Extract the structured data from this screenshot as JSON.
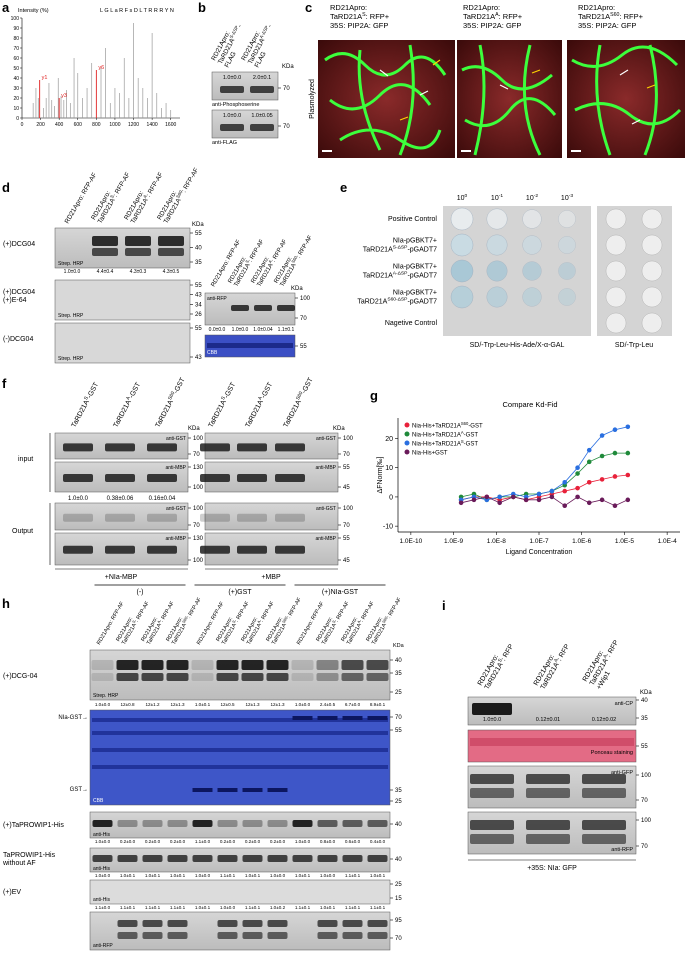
{
  "panel_a": {
    "letter": "a",
    "y_label": "Intensity (%)",
    "sequence": "L G L a R F s D L T R R R Y N",
    "xlim": [
      0,
      1700
    ],
    "ylim": [
      0,
      100
    ],
    "xticks": [
      0,
      200,
      400,
      600,
      800,
      1000,
      1200,
      1400,
      1600
    ],
    "yticks": [
      0,
      10,
      20,
      30,
      40,
      50,
      60,
      70,
      80,
      90,
      100
    ],
    "peaks": {
      "x": [
        120,
        150,
        175,
        230,
        260,
        290,
        320,
        350,
        390,
        420,
        450,
        480,
        520,
        560,
        600,
        650,
        700,
        750,
        850,
        900,
        950,
        1000,
        1050,
        1100,
        1150,
        1200,
        1250,
        1300,
        1350,
        1400,
        1450,
        1500,
        1550,
        1600
      ],
      "values": [
        15,
        30,
        20,
        10,
        20,
        35,
        18,
        12,
        40,
        22,
        18,
        28,
        15,
        60,
        45,
        20,
        30,
        55,
        50,
        70,
        15,
        30,
        25,
        60,
        20,
        95,
        40,
        30,
        20,
        85,
        25,
        10,
        15,
        8
      ]
    },
    "ions": [
      {
        "label": "y1",
        "x": 190,
        "value": 38
      },
      {
        "label": "y3",
        "x": 400,
        "value": 20
      },
      {
        "label": "y6",
        "x": 800,
        "value": 48
      }
    ]
  },
  "panel_b": {
    "letter": "b",
    "kda": "KDa",
    "columns": [
      [
        "RD21Apro:",
        {
          "pre": "TaRD21A",
          "sup": "S-ΔSP",
          "post": "-"
        },
        "FLAG"
      ],
      [
        "RD21Apro:",
        {
          "pre": "TaRD21A",
          "sup": "A-ΔSP",
          "post": "-"
        },
        "FLAG"
      ]
    ],
    "blots": [
      {
        "values": [
          "1.0±0.0",
          "2.0±0.1"
        ],
        "antibody": "anti-Phosphoserine",
        "marker": 70
      },
      {
        "values": [
          "1.0±0.0",
          "1.0±0.05"
        ],
        "antibody": "anti-FLAG",
        "marker": 70
      }
    ]
  },
  "panel_c": {
    "letter": "c",
    "side_label": "Plasmolyzed",
    "images": [
      [
        "RD21Apro:",
        {
          "pre": "TaRD21A",
          "sup": "S",
          "post": ": RFP+"
        },
        "35S: PIP2A: GFP"
      ],
      [
        "RD21Apro:",
        {
          "pre": "TaRD21A",
          "sup": "A",
          "post": ": RFP+"
        },
        "35S: PIP2A: GFP"
      ],
      [
        "RD21Apro:",
        {
          "pre": "TaRD21A",
          "sup": "S60",
          "post": ": RFP+"
        },
        "35S: PIP2A: GFP"
      ]
    ]
  },
  "panel_d": {
    "letter": "d",
    "kda": "KDa",
    "lanes": [
      [
        "RD21Apro: RFP-AF"
      ],
      [
        "RD21Apro:",
        {
          "pre": "TaRD21A",
          "sup": "S",
          "post": ": RFP-AF"
        }
      ],
      [
        "RD21Apro:",
        {
          "pre": "TaRD21A",
          "sup": "A",
          "post": ": RFP-AF"
        }
      ],
      [
        "RD21Apro:",
        {
          "pre": "TaRD21A",
          "sup": "S60",
          "post": ": RFP-AF"
        }
      ]
    ],
    "rows": [
      {
        "label": [
          "(+)DCG04"
        ],
        "detection": "Strep. HRP",
        "markers": [
          55,
          40,
          35
        ],
        "values": [
          "1.0±0.0",
          "4.4±0.4",
          "4.3±0.3",
          "4.3±0.5"
        ]
      },
      {
        "label": [
          "(+)DCG04",
          "(+)E-64"
        ],
        "detection": "Strep. HRP",
        "markers": [
          55,
          43,
          34,
          26
        ]
      },
      {
        "label": [
          "(-)DCG04"
        ],
        "detection": "Strep. HRP",
        "markers": [
          55,
          43
        ]
      }
    ],
    "right": {
      "lanes": [
        [
          "RD21Apro: RFP-AF"
        ],
        [
          "RD21Apro:",
          {
            "pre": "TaRD21A",
            "sup": "S",
            "post": ": RFP-AF"
          }
        ],
        [
          "RD21Apro:",
          {
            "pre": "TaRD21A",
            "sup": "A",
            "post": ": RFP-AF"
          }
        ],
        [
          "RD21Apro:",
          {
            "pre": "TaRD21A",
            "sup": "S60",
            "post": ": RFP-AF"
          }
        ]
      ],
      "kda": "KDa",
      "antibody": "anti-RFP",
      "stain": "CBB",
      "markers": [
        100,
        70
      ],
      "stain_markers": [
        55
      ],
      "values": [
        "0.0±0.0",
        "1.0±0.0",
        "1.0±0.04",
        "1.1±0.1"
      ]
    }
  },
  "panel_e": {
    "letter": "e",
    "dilutions": [
      {
        "pre": "10",
        "sup": "0"
      },
      {
        "pre": "10",
        "sup": "-1"
      },
      {
        "pre": "10",
        "sup": "-2"
      },
      {
        "pre": "10",
        "sup": "-3"
      }
    ],
    "rows": [
      [
        "Positive Control"
      ],
      [
        "NIa-pGBKT7+",
        {
          "pre": "TaRD21A",
          "sup": "S-ΔSP",
          "post": "-pGADT7"
        }
      ],
      [
        "NIa-pGBKT7+",
        {
          "pre": "TaRD21A",
          "sup": "A-ΔSP",
          "post": "-pGADT7"
        }
      ],
      [
        "NIa-pGBKT7+",
        {
          "pre": "TaRD21A",
          "sup": "S60-ΔSP",
          "post": "-pGADT7"
        }
      ],
      [
        "Nagetive Control"
      ]
    ],
    "media": [
      "SD/-Trp-Leu-His-Ade/X-α-GAL",
      "SD/-Trp-Leu"
    ]
  },
  "panel_f": {
    "letter": "f",
    "kda": "KDa",
    "input": "input",
    "output": "Output",
    "left": {
      "lanes": [
        {
          "pre": "TaRD21A",
          "sup": "S",
          "post": "-GST"
        },
        {
          "pre": "TaRD21A",
          "sup": "A",
          "post": "-GST"
        },
        {
          "pre": "TaRD21A",
          "sup": "S60",
          "post": "-GST"
        }
      ],
      "values": [
        "1.0±0.0",
        "0.38±0.06",
        "0.16±0.04"
      ],
      "condition": "+NIa-MBP",
      "antibodies": [
        "anti-GST",
        "anti-MBP",
        "anti-GST",
        "anti-MBP"
      ],
      "markers": [
        [
          100,
          70
        ],
        [
          130,
          100
        ],
        [
          100,
          70
        ],
        [
          130,
          100
        ]
      ]
    },
    "right": {
      "lanes": [
        {
          "pre": "TaRD21A",
          "sup": "S",
          "post": "-GST"
        },
        {
          "pre": "TaRD21A",
          "sup": "A",
          "post": "-GST"
        },
        {
          "pre": "TaRD21A",
          "sup": "S60",
          "post": "-GST"
        }
      ],
      "condition": "+MBP",
      "kda": "KDa",
      "antibodies": [
        "anti-GST",
        "anti-MBP",
        "anti-GST",
        "anti-MBP"
      ],
      "markers": [
        [
          100,
          70
        ],
        [
          55,
          45
        ],
        [
          100,
          70
        ],
        [
          55,
          45
        ]
      ]
    }
  },
  "panel_g": {
    "letter": "g",
    "chart_data": {
      "type": "scatter",
      "title": "Compare Kd-Fid",
      "x_label": "Ligand Concentration",
      "y_label": "ΔFNorm[‰]",
      "log_x": true,
      "x": [
        1.5e-09,
        3e-09,
        6e-09,
        1.2e-08,
        2.5e-08,
        5e-08,
        1e-07,
        2e-07,
        4e-07,
        8e-07,
        1.5e-06,
        3e-06,
        6e-06,
        1.2e-05
      ],
      "xlim": [
        5e-11,
        0.0002
      ],
      "ylim": [
        -12,
        27
      ],
      "xticks": [
        {
          "value": 1e-10,
          "label": "1.0E-10"
        },
        {
          "value": 1e-09,
          "label": "1.0E-9"
        },
        {
          "value": 1e-08,
          "label": "1.0E-8"
        },
        {
          "value": 1e-07,
          "label": "1.0E-7"
        },
        {
          "value": 1e-06,
          "label": "1.0E-6"
        },
        {
          "value": 1e-05,
          "label": "1.0E-5"
        },
        {
          "value": 0.0001,
          "label": "1.0E-4"
        }
      ],
      "yticks": [
        -10,
        0,
        10,
        20
      ],
      "series": [
        {
          "name": {
            "pre": "Nia-His+TaRD21A",
            "sup": "S60",
            "post": "-GST"
          },
          "color": "#e8213a",
          "values": [
            -1,
            0,
            0,
            -1,
            0,
            -1,
            0,
            1,
            2,
            3,
            5,
            6,
            7,
            7.5
          ]
        },
        {
          "name": {
            "pre": "Nia-His+TaRD21A",
            "sup": "A",
            "post": "-GST"
          },
          "color": "#1f8a3a",
          "values": [
            0,
            1,
            -1,
            0,
            0,
            1,
            1,
            2,
            4,
            8,
            12,
            14,
            15,
            15
          ]
        },
        {
          "name": {
            "pre": "Nia-His+TaRD21A",
            "sup": "S",
            "post": "-GST"
          },
          "color": "#2a6fe0",
          "values": [
            -1,
            0,
            -1,
            0,
            1,
            0,
            1,
            2,
            5,
            10,
            16,
            21,
            23,
            24
          ]
        },
        {
          "name": "Nia-His+GST",
          "color": "#6a1b5a",
          "values": [
            -2,
            -1,
            0,
            -2,
            0,
            -1,
            -1,
            0,
            -3,
            0,
            -2,
            -1,
            -3,
            -1
          ]
        }
      ]
    }
  },
  "panel_h": {
    "letter": "h",
    "kda": "KDa",
    "groups": [
      "(-)",
      "(+)GST",
      "(+)NIa-GST"
    ],
    "lanes": [
      [
        "RD21Apro: RFP-AF"
      ],
      [
        "RD21Apro:",
        {
          "pre": "TaRD21A",
          "sup": "S",
          "post": ": RFP-AF"
        }
      ],
      [
        "RD21Apro:",
        {
          "pre": "TaRD21A",
          "sup": "A",
          "post": ": RFP-AF"
        }
      ],
      [
        "RD21Apro:",
        {
          "pre": "TaRD21A",
          "sup": "S60",
          "post": ": RFP-AF"
        }
      ],
      [
        "RD21Apro: RFP-AF"
      ],
      [
        "RD21Apro:",
        {
          "pre": "TaRD21A",
          "sup": "S",
          "post": ": RFP-AF"
        }
      ],
      [
        "RD21Apro:",
        {
          "pre": "TaRD21A",
          "sup": "A",
          "post": ": RFP-AF"
        }
      ],
      [
        "RD21Apro:",
        {
          "pre": "TaRD21A",
          "sup": "S60",
          "post": ": RFP-AF"
        }
      ],
      [
        "RD21Apro: RFP-AF"
      ],
      [
        "RD21Apro:",
        {
          "pre": "TaRD21A",
          "sup": "S",
          "post": ": RFP-AF"
        }
      ],
      [
        "RD21Apro:",
        {
          "pre": "TaRD21A",
          "sup": "A",
          "post": ": RFP-AF"
        }
      ],
      [
        "RD21Apro:",
        {
          "pre": "TaRD21A",
          "sup": "S60",
          "post": ": RFP-AF"
        }
      ]
    ],
    "dcg": {
      "label": "(+)DCG-04",
      "detection": "Strep. HRP",
      "markers": [
        40,
        35,
        25
      ],
      "values": [
        "1.0±0.0",
        "12±0.8",
        "12±1.2",
        "12±1.3",
        "1.0±0.1",
        "12±0.5",
        "12±1.3",
        "12±1.3",
        "1.0±0.0",
        "2.4±0.5",
        "6.7±0.0",
        "8.9±0.1"
      ]
    },
    "cbb": {
      "nia_gst": "NIa-GST→",
      "gst": "GST→",
      "stain": "CBB",
      "markers": [
        70,
        55,
        35,
        25
      ]
    },
    "prowip": {
      "label": "(+)TaPROWIP1-His",
      "antibody": "anti-His",
      "markers": [
        40
      ],
      "values": [
        "1.0±0.0",
        "0.2±0.0",
        "0.2±0.0",
        "0.2±0.0",
        "1.1±0.0",
        "0.2±0.0",
        "0.2±0.0",
        "0.2±0.0",
        "1.0±0.0",
        "0.8±0.0",
        "0.6±0.0",
        "0.4±0.0"
      ]
    },
    "without_af": {
      "label": [
        "TaPROWIP1-His",
        "without AF"
      ],
      "antibody": "anti-His",
      "markers": [
        40
      ],
      "values": [
        "1.0±0.0",
        "1.0±0.1",
        "1.0±0.1",
        "1.0±0.1",
        "1.0±0.0",
        "1.1±0.1",
        "1.0±0.1",
        "1.0±0.0",
        "1.0±0.1",
        "1.0±0.0",
        "1.1±0.1",
        "1.0±0.1"
      ]
    },
    "ev": {
      "label": "(+)EV",
      "antibody": "anti-His",
      "markers": [
        25,
        15
      ],
      "values": [
        "1.1±0.0",
        "1.1±0.1",
        "1.1±0.1",
        "1.1±0.1",
        "1.0±0.1",
        "1.0±0.0",
        "1.1±0.1",
        "1.0±0.2",
        "1.1±0.1",
        "1.0±0.1",
        "1.1±0.1",
        "1.1±0.1"
      ]
    },
    "rfp": {
      "antibody": "anti-RFP",
      "markers": [
        95,
        70
      ]
    }
  },
  "panel_i": {
    "letter": "i",
    "kda": "KDa",
    "condition": "+35S: NIa: GFP",
    "lanes": [
      [
        "RD21Apro:",
        {
          "pre": "TaRD21A",
          "sup": "S",
          "post": ": RFP"
        }
      ],
      [
        "RD21Apro:",
        {
          "pre": "TaRD21A",
          "sup": "A",
          "post": ": RFP"
        }
      ],
      [
        "RD21Apro:",
        {
          "pre": "TaRD21A",
          "sup": "A",
          "post": ": RFP"
        },
        "+Wip1"
      ]
    ],
    "values": [
      "1.0±0.0",
      "0.12±0.01",
      "0.12±0.02"
    ],
    "blots": [
      {
        "label": "anti-CP",
        "markers": [
          40,
          35
        ]
      },
      {
        "label": "Ponceau staining",
        "markers": [
          55
        ]
      },
      {
        "label": "anti-GFP",
        "markers": [
          100,
          70
        ]
      },
      {
        "label": "anti-RFP",
        "markers": [
          100,
          70
        ]
      }
    ]
  }
}
